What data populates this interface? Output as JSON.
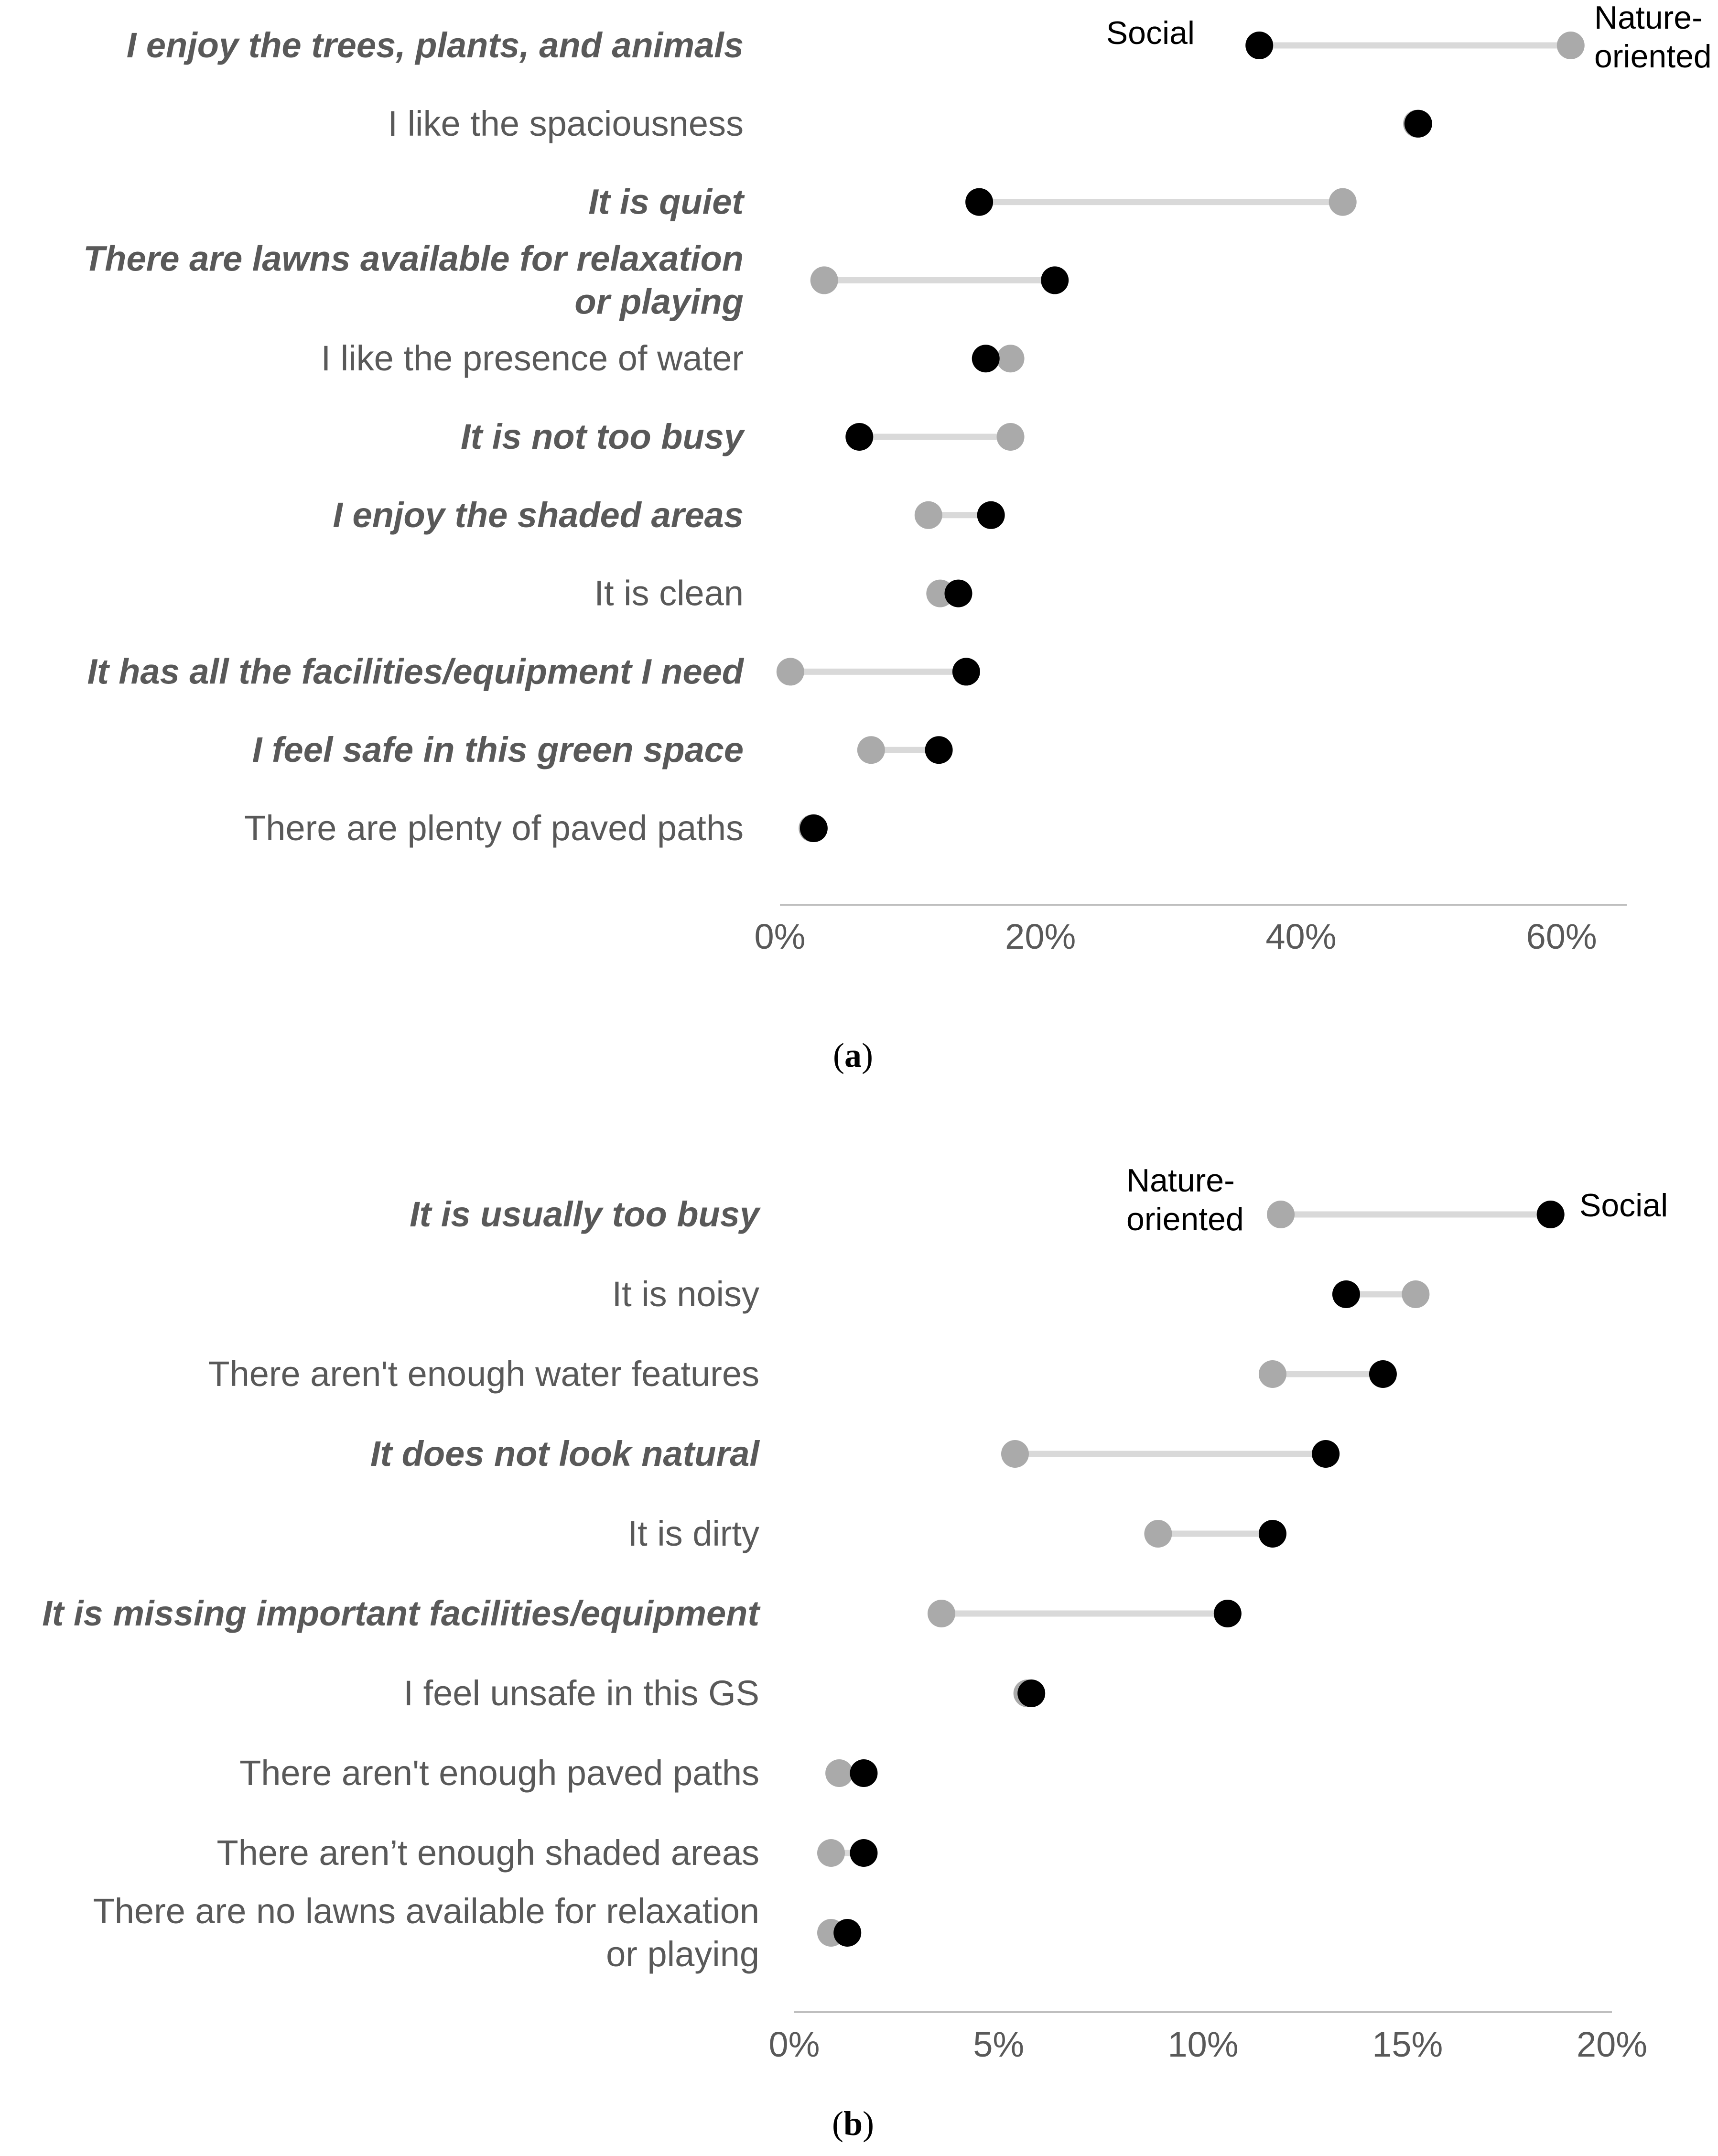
{
  "chart_data": [
    {
      "type": "dumbbell",
      "panel_label": "(a)",
      "xlim": [
        0,
        65
      ],
      "ticks": [
        0,
        20,
        40,
        60
      ],
      "tick_suffix": "%",
      "legend_labels": {
        "nature_oriented": [
          "Nature-",
          "oriented"
        ],
        "social": [
          "Social"
        ]
      },
      "colors": {
        "social": "#000000",
        "nature_oriented": "#aaaaaa",
        "connector": "#d9d9d9",
        "axis": "#bfbfbf"
      },
      "series": [
        {
          "name": "Social",
          "key": "social"
        },
        {
          "name": "Nature-oriented",
          "key": "nature"
        }
      ],
      "categories": [
        {
          "lines": [
            "I enjoy the trees, plants, and animals"
          ],
          "emphasis": true,
          "social": 36.8,
          "nature": 60.7
        },
        {
          "lines": [
            "I like the spaciousness"
          ],
          "emphasis": false,
          "social": 49.0,
          "nature": 48.9
        },
        {
          "lines": [
            "It is quiet"
          ],
          "emphasis": true,
          "social": 15.3,
          "nature": 43.2
        },
        {
          "lines": [
            "There are lawns available for relaxation",
            "or playing"
          ],
          "emphasis": true,
          "social": 21.1,
          "nature": 3.4
        },
        {
          "lines": [
            "I like the presence of water"
          ],
          "emphasis": false,
          "social": 15.8,
          "nature": 17.7
        },
        {
          "lines": [
            "It is not too busy"
          ],
          "emphasis": true,
          "social": 6.1,
          "nature": 17.7
        },
        {
          "lines": [
            "I enjoy the shaded areas"
          ],
          "emphasis": true,
          "social": 16.2,
          "nature": 11.4
        },
        {
          "lines": [
            "It is clean"
          ],
          "emphasis": false,
          "social": 13.7,
          "nature": 12.3
        },
        {
          "lines": [
            "It has all the facilities/equipment I need"
          ],
          "emphasis": true,
          "social": 14.3,
          "nature": 0.8
        },
        {
          "lines": [
            "I feel safe in this green space"
          ],
          "emphasis": true,
          "social": 12.2,
          "nature": 7.0
        },
        {
          "lines": [
            "There are plenty of paved paths"
          ],
          "emphasis": false,
          "social": 2.6,
          "nature": 2.5
        }
      ]
    },
    {
      "type": "dumbbell",
      "panel_label": "(b)",
      "xlim": [
        0,
        20
      ],
      "ticks": [
        0,
        5,
        10,
        15,
        20
      ],
      "tick_suffix": "%",
      "legend_labels": {
        "nature_oriented": [
          "Nature-",
          "oriented"
        ],
        "social": [
          "Social"
        ]
      },
      "colors": {
        "social": "#000000",
        "nature_oriented": "#aaaaaa",
        "connector": "#d9d9d9",
        "axis": "#bfbfbf"
      },
      "series": [
        {
          "name": "Social",
          "key": "social"
        },
        {
          "name": "Nature-oriented",
          "key": "nature"
        }
      ],
      "categories": [
        {
          "lines": [
            "It is usually too busy"
          ],
          "emphasis": true,
          "social": 18.5,
          "nature": 11.9
        },
        {
          "lines": [
            "It is noisy"
          ],
          "emphasis": false,
          "social": 13.5,
          "nature": 15.2
        },
        {
          "lines": [
            "There aren't enough water features"
          ],
          "emphasis": false,
          "social": 14.4,
          "nature": 11.7
        },
        {
          "lines": [
            "It does not look natural"
          ],
          "emphasis": true,
          "social": 13.0,
          "nature": 5.4
        },
        {
          "lines": [
            "It is dirty"
          ],
          "emphasis": false,
          "social": 11.7,
          "nature": 8.9
        },
        {
          "lines": [
            "It is missing important facilities/equipment"
          ],
          "emphasis": true,
          "social": 10.6,
          "nature": 3.6
        },
        {
          "lines": [
            "I feel unsafe in this GS"
          ],
          "emphasis": false,
          "social": 5.8,
          "nature": 5.7
        },
        {
          "lines": [
            "There aren't enough paved paths"
          ],
          "emphasis": false,
          "social": 1.7,
          "nature": 1.1
        },
        {
          "lines": [
            "There aren’t enough shaded areas"
          ],
          "emphasis": false,
          "social": 1.7,
          "nature": 0.9
        },
        {
          "lines": [
            "There are no lawns available for relaxation",
            "or playing"
          ],
          "emphasis": false,
          "social": 1.3,
          "nature": 0.9
        }
      ]
    }
  ]
}
